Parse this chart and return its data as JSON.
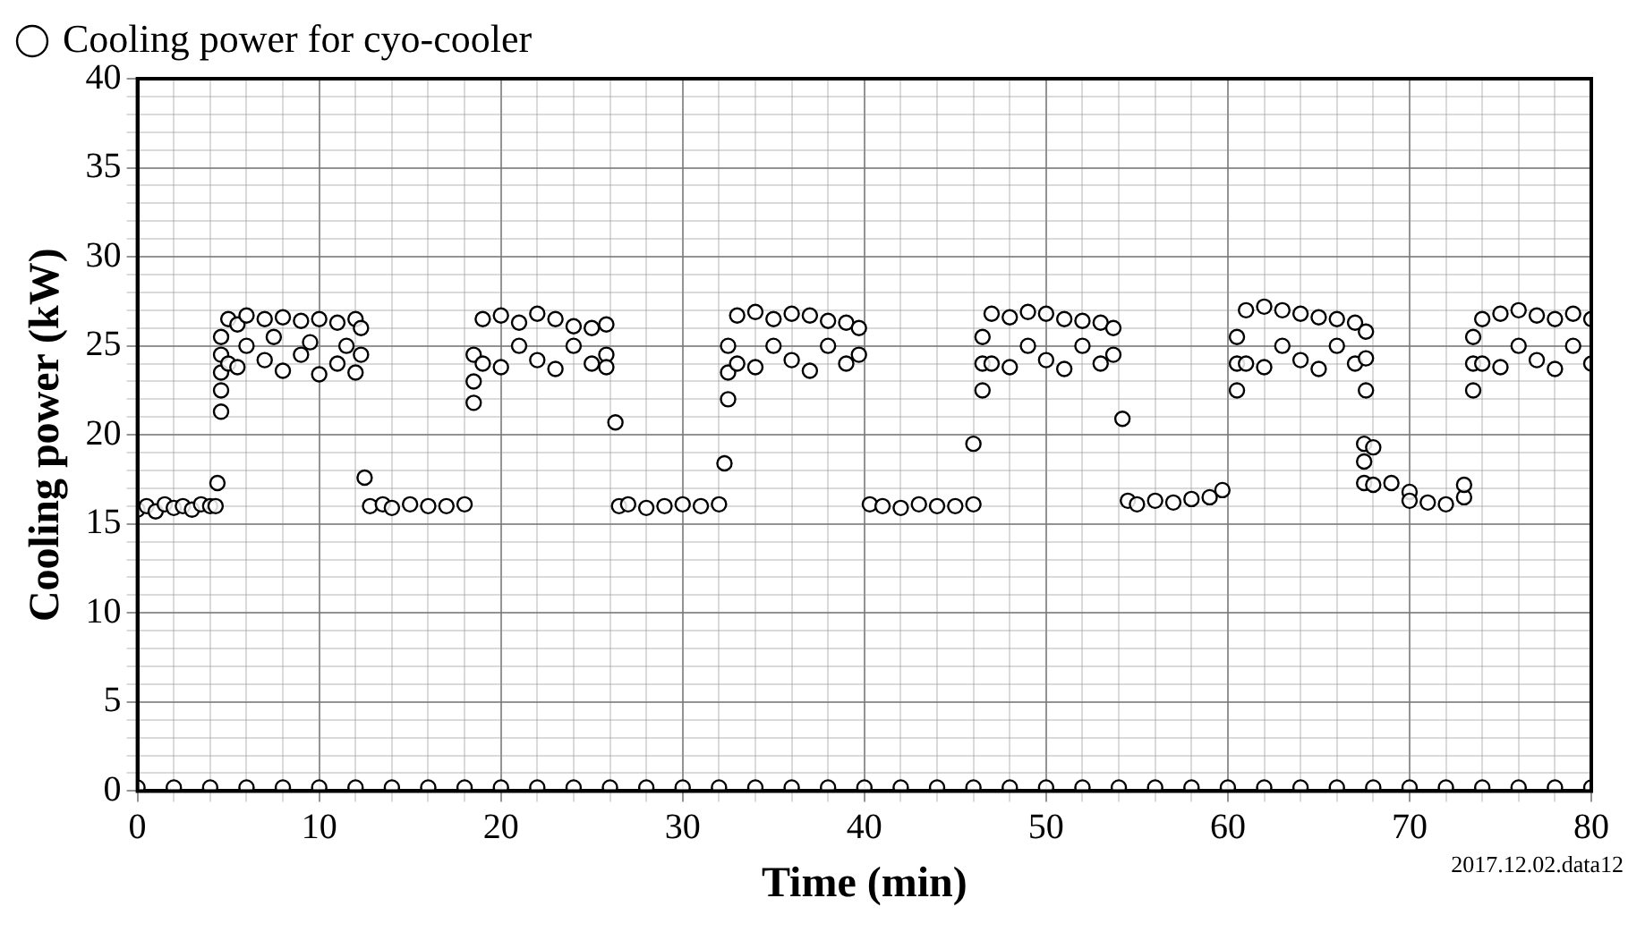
{
  "chart_data": {
    "type": "scatter",
    "xlabel": "Time (min)",
    "ylabel": "Cooling power (kW)",
    "annotations": [
      "2017.12.02.data12"
    ],
    "xlim": [
      0,
      80
    ],
    "ylim": [
      0,
      40
    ],
    "xticks": [
      0,
      {
        "value": 2,
        "label": null
      },
      {
        "value": 4,
        "label": null
      },
      {
        "value": 6,
        "label": null
      },
      {
        "value": 8,
        "label": null
      },
      10,
      {
        "value": 12,
        "label": null
      },
      {
        "value": 14,
        "label": null
      },
      {
        "value": 16,
        "label": null
      },
      {
        "value": 18,
        "label": null
      },
      20,
      {
        "value": 22,
        "label": null
      },
      {
        "value": 24,
        "label": null
      },
      {
        "value": 26,
        "label": null
      },
      {
        "value": 28,
        "label": null
      },
      30,
      {
        "value": 32,
        "label": null
      },
      {
        "value": 34,
        "label": null
      },
      {
        "value": 36,
        "label": null
      },
      {
        "value": 38,
        "label": null
      },
      40,
      {
        "value": 42,
        "label": null
      },
      {
        "value": 44,
        "label": null
      },
      {
        "value": 46,
        "label": null
      },
      {
        "value": 48,
        "label": null
      },
      50,
      {
        "value": 52,
        "label": null
      },
      {
        "value": 54,
        "label": null
      },
      {
        "value": 56,
        "label": null
      },
      {
        "value": 58,
        "label": null
      },
      60,
      {
        "value": 62,
        "label": null
      },
      {
        "value": 64,
        "label": null
      },
      {
        "value": 66,
        "label": null
      },
      {
        "value": 68,
        "label": null
      },
      70,
      {
        "value": 72,
        "label": null
      },
      {
        "value": 74,
        "label": null
      },
      {
        "value": 76,
        "label": null
      },
      {
        "value": 78,
        "label": null
      },
      80
    ],
    "yticks": [
      0,
      {
        "value": 1,
        "label": null
      },
      {
        "value": 2,
        "label": null
      },
      {
        "value": 3,
        "label": null
      },
      {
        "value": 4,
        "label": null
      },
      5,
      {
        "value": 6,
        "label": null
      },
      {
        "value": 7,
        "label": null
      },
      {
        "value": 8,
        "label": null
      },
      {
        "value": 9,
        "label": null
      },
      10,
      {
        "value": 11,
        "label": null
      },
      {
        "value": 12,
        "label": null
      },
      {
        "value": 13,
        "label": null
      },
      {
        "value": 14,
        "label": null
      },
      15,
      {
        "value": 16,
        "label": null
      },
      {
        "value": 17,
        "label": null
      },
      {
        "value": 18,
        "label": null
      },
      {
        "value": 19,
        "label": null
      },
      20,
      {
        "value": 21,
        "label": null
      },
      {
        "value": 22,
        "label": null
      },
      {
        "value": 23,
        "label": null
      },
      {
        "value": 24,
        "label": null
      },
      25,
      {
        "value": 26,
        "label": null
      },
      {
        "value": 27,
        "label": null
      },
      {
        "value": 28,
        "label": null
      },
      {
        "value": 29,
        "label": null
      },
      30,
      {
        "value": 31,
        "label": null
      },
      {
        "value": 32,
        "label": null
      },
      {
        "value": 33,
        "label": null
      },
      {
        "value": 34,
        "label": null
      },
      35,
      {
        "value": 36,
        "label": null
      },
      {
        "value": 37,
        "label": null
      },
      {
        "value": 38,
        "label": null
      },
      {
        "value": 39,
        "label": null
      },
      40
    ],
    "grid": true,
    "legend": "top left",
    "marker": "circle",
    "series": [
      {
        "name": "Cooling power for cyo-cooler",
        "color": "#000000",
        "x": [
          0,
          0.5,
          1,
          1.5,
          2,
          2.5,
          3,
          3.5,
          4,
          4.3,
          4.4,
          4.6,
          4.6,
          4.6,
          4.6,
          4.6,
          5,
          5,
          5.5,
          5.5,
          6,
          6,
          7,
          7,
          7.5,
          8,
          8,
          9,
          9,
          9.5,
          10,
          10,
          11,
          11,
          11.5,
          12,
          12,
          12.3,
          12.3,
          12.5,
          12.8,
          13.5,
          14,
          15,
          16,
          17,
          18,
          18.5,
          18.5,
          18.5,
          19,
          19,
          20,
          20,
          21,
          21,
          22,
          22,
          23,
          23,
          24,
          24,
          25,
          25,
          25.8,
          25.8,
          25.8,
          26.3,
          26.5,
          27,
          28,
          29,
          30,
          31,
          32,
          32.3,
          32.5,
          32.5,
          32.5,
          33,
          33,
          34,
          34,
          35,
          35,
          36,
          36,
          37,
          37,
          38,
          38,
          39,
          39,
          39.7,
          39.7,
          40.3,
          41,
          42,
          43,
          44,
          45,
          46,
          46,
          46.5,
          46.5,
          46.5,
          47,
          47,
          48,
          48,
          49,
          49,
          50,
          50,
          51,
          51,
          52,
          52,
          53,
          53,
          53.7,
          53.7,
          54.2,
          54.5,
          55,
          56,
          57,
          58,
          59,
          59.7,
          60.5,
          60.5,
          60.5,
          61,
          61,
          62,
          62,
          63,
          63,
          64,
          64,
          65,
          65,
          66,
          66,
          67,
          67,
          67.6,
          67.6,
          67.6,
          67.5,
          67.5,
          67.5,
          68,
          68,
          69,
          70,
          70,
          71,
          72,
          73,
          73,
          73.5,
          73.5,
          73.5,
          74,
          74,
          75,
          75,
          76,
          76,
          77,
          77,
          78,
          78,
          79,
          79,
          80,
          80,
          0,
          2,
          4,
          6,
          8,
          10,
          12,
          14,
          16,
          18,
          20,
          22,
          24,
          26,
          28,
          30,
          32,
          34,
          36,
          38,
          40,
          42,
          44,
          46,
          48,
          50,
          52,
          54,
          56,
          58,
          60,
          62,
          64,
          66,
          68,
          70,
          72,
          74,
          76,
          78,
          80
        ],
        "values": [
          15.8,
          16,
          15.7,
          16.1,
          15.9,
          16,
          15.8,
          16.1,
          16,
          16,
          17.3,
          21.3,
          22.5,
          23.5,
          24.5,
          25.5,
          26.5,
          24,
          26.2,
          23.8,
          26.7,
          25,
          26.5,
          24.2,
          25.5,
          26.6,
          23.6,
          26.4,
          24.5,
          25.2,
          26.5,
          23.4,
          26.3,
          24,
          25,
          26.5,
          23.5,
          26,
          24.5,
          17.6,
          16,
          16.1,
          15.9,
          16.1,
          16,
          16,
          16.1,
          21.8,
          23,
          24.5,
          26.5,
          24,
          26.7,
          23.8,
          26.3,
          25,
          26.8,
          24.2,
          26.5,
          23.7,
          26.1,
          25,
          26,
          24,
          26.2,
          24.5,
          23.8,
          20.7,
          16,
          16.1,
          15.9,
          16,
          16.1,
          16,
          16.1,
          18.4,
          22,
          23.5,
          25,
          26.7,
          24,
          26.9,
          23.8,
          26.5,
          25,
          26.8,
          24.2,
          26.7,
          23.6,
          26.4,
          25,
          26.3,
          24,
          26,
          24.5,
          16.1,
          16,
          15.9,
          16.1,
          16,
          16,
          16.1,
          19.5,
          22.5,
          24,
          25.5,
          26.8,
          24,
          26.6,
          23.8,
          26.9,
          25,
          26.8,
          24.2,
          26.5,
          23.7,
          26.4,
          25,
          26.3,
          24,
          26,
          24.5,
          20.9,
          16.3,
          16.1,
          16.3,
          16.2,
          16.4,
          16.5,
          16.9,
          22.5,
          24,
          25.5,
          27,
          24,
          27.2,
          23.8,
          27,
          25,
          26.8,
          24.2,
          26.6,
          23.7,
          26.5,
          25,
          26.3,
          24,
          25.8,
          24.3,
          22.5,
          19.5,
          18.5,
          17.3,
          19.3,
          17.2,
          17.3,
          16.8,
          16.3,
          16.2,
          16.1,
          16.5,
          17.2,
          22.5,
          24,
          25.5,
          26.5,
          24,
          26.8,
          23.8,
          27,
          25,
          26.7,
          24.2,
          26.5,
          23.7,
          26.8,
          25,
          26.5,
          24,
          0.2,
          0.2,
          0.2,
          0.2,
          0.2,
          0.2,
          0.2,
          0.2,
          0.2,
          0.2,
          0.2,
          0.2,
          0.2,
          0.2,
          0.2,
          0.2,
          0.2,
          0.2,
          0.2,
          0.2,
          0.2,
          0.2,
          0.2,
          0.2,
          0.2,
          0.2,
          0.2,
          0.2,
          0.2,
          0.2,
          0.2,
          0.2,
          0.2,
          0.2,
          0.2,
          0.2,
          0.2,
          0.2,
          0.2,
          0.2,
          0.2
        ]
      }
    ]
  }
}
